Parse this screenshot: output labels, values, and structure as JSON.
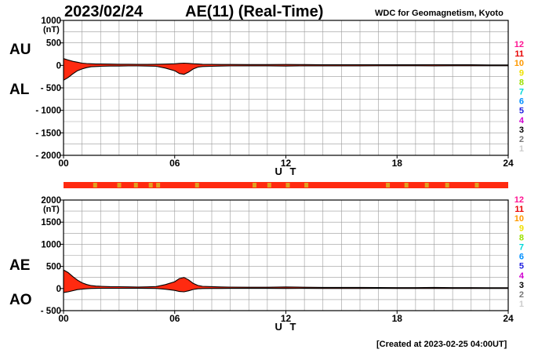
{
  "header": {
    "date": "2023/02/24",
    "title": "AE(11) (Real-Time)",
    "source": "WDC for Geomagnetism, Kyoto",
    "created": "[Created at 2023-02-25 04:00UT]"
  },
  "colors": {
    "fill": "#ff2a10",
    "grid": "#9a9a9a",
    "bar_base": "#ff2a10",
    "bar_marks": "#e0a020"
  },
  "level_scale": [
    {
      "label": "12",
      "color": "#ff1493"
    },
    {
      "label": "11",
      "color": "#e80000"
    },
    {
      "label": "10",
      "color": "#ff9900"
    },
    {
      "label": "9",
      "color": "#f0e000"
    },
    {
      "label": "8",
      "color": "#9be000"
    },
    {
      "label": "7",
      "color": "#00d8d8"
    },
    {
      "label": "6",
      "color": "#0090ff"
    },
    {
      "label": "5",
      "color": "#2020e0"
    },
    {
      "label": "4",
      "color": "#d000d0"
    },
    {
      "label": "3",
      "color": "#000000"
    },
    {
      "label": "2",
      "color": "#777777"
    },
    {
      "label": "1",
      "color": "#cccccc"
    }
  ],
  "status_bar": {
    "marks_ut": [
      1.6,
      2.9,
      3.8,
      4.6,
      5.0,
      7.1,
      10.2,
      11.0,
      12.0,
      13.0,
      17.4,
      18.4,
      19.5,
      20.6,
      22.2
    ]
  },
  "chart_data": [
    {
      "type": "area",
      "panel": "AU/AL",
      "labels_left": [
        "AU",
        "AL"
      ],
      "unit": "(nT)",
      "xlabel": "U T",
      "xlim": [
        0,
        24
      ],
      "xticks": [
        "00",
        "06",
        "12",
        "18",
        "24"
      ],
      "ylim": [
        -2000,
        1000
      ],
      "yticks": [
        1000,
        500,
        0,
        -500,
        -1000,
        -1500,
        -2000
      ],
      "ytick_labels": [
        "1000",
        "500",
        "0",
        "- 500",
        "- 1000",
        "- 1500",
        "- 2000"
      ],
      "grid": true,
      "x": [
        0,
        0.25,
        0.5,
        0.75,
        1,
        1.25,
        1.5,
        1.75,
        2,
        2.5,
        3,
        3.5,
        4,
        4.5,
        5,
        5.5,
        6,
        6.25,
        6.5,
        6.75,
        7,
        7.25,
        7.5,
        8,
        8.5,
        9,
        10,
        11,
        12,
        13,
        14,
        15,
        16,
        17,
        18,
        19,
        20,
        21,
        22,
        23,
        24
      ],
      "series": [
        {
          "name": "AU",
          "values": [
            150,
            120,
            90,
            70,
            50,
            40,
            35,
            30,
            30,
            28,
            25,
            25,
            22,
            22,
            25,
            28,
            35,
            45,
            50,
            45,
            35,
            30,
            25,
            22,
            20,
            20,
            18,
            18,
            20,
            18,
            15,
            15,
            15,
            15,
            12,
            12,
            15,
            12,
            12,
            10,
            10
          ]
        },
        {
          "name": "AL",
          "values": [
            -330,
            -270,
            -190,
            -120,
            -80,
            -50,
            -30,
            -25,
            -20,
            -15,
            -15,
            -12,
            -12,
            -15,
            -20,
            -60,
            -120,
            -180,
            -200,
            -150,
            -80,
            -40,
            -25,
            -20,
            -15,
            -12,
            -10,
            -10,
            -15,
            -10,
            -10,
            -10,
            -10,
            -8,
            -8,
            -8,
            -10,
            -8,
            -8,
            -8,
            -8
          ]
        }
      ]
    },
    {
      "type": "area",
      "panel": "AE/AO",
      "labels_left": [
        "AE",
        "AO"
      ],
      "unit": "(nT)",
      "xlabel": "U T",
      "xlim": [
        0,
        24
      ],
      "xticks": [
        "00",
        "06",
        "12",
        "18",
        "24"
      ],
      "ylim": [
        -500,
        2000
      ],
      "yticks": [
        2000,
        1500,
        1000,
        500,
        0,
        -500
      ],
      "ytick_labels": [
        "2000",
        "1500",
        "1000",
        "500",
        "0",
        "- 500"
      ],
      "grid": true,
      "x": [
        0,
        0.25,
        0.5,
        0.75,
        1,
        1.25,
        1.5,
        1.75,
        2,
        2.5,
        3,
        3.5,
        4,
        4.5,
        5,
        5.5,
        6,
        6.25,
        6.5,
        6.75,
        7,
        7.25,
        7.5,
        8,
        8.5,
        9,
        10,
        11,
        12,
        13,
        14,
        15,
        16,
        17,
        18,
        19,
        20,
        21,
        22,
        23,
        24
      ],
      "series": [
        {
          "name": "AE",
          "values": [
            420,
            360,
            270,
            190,
            130,
            90,
            65,
            55,
            50,
            43,
            40,
            37,
            34,
            37,
            45,
            88,
            155,
            225,
            250,
            195,
            115,
            70,
            50,
            42,
            35,
            32,
            28,
            28,
            35,
            28,
            25,
            25,
            25,
            23,
            20,
            20,
            25,
            20,
            20,
            18,
            18
          ]
        },
        {
          "name": "AO",
          "values": [
            -90,
            -75,
            -50,
            -25,
            -15,
            -5,
            2,
            3,
            5,
            6,
            5,
            6,
            5,
            4,
            2,
            -16,
            -42,
            -68,
            -75,
            -52,
            -22,
            -5,
            0,
            1,
            2,
            4,
            4,
            4,
            2,
            4,
            2,
            2,
            2,
            3,
            2,
            2,
            2,
            2,
            2,
            1,
            1
          ]
        }
      ]
    }
  ]
}
